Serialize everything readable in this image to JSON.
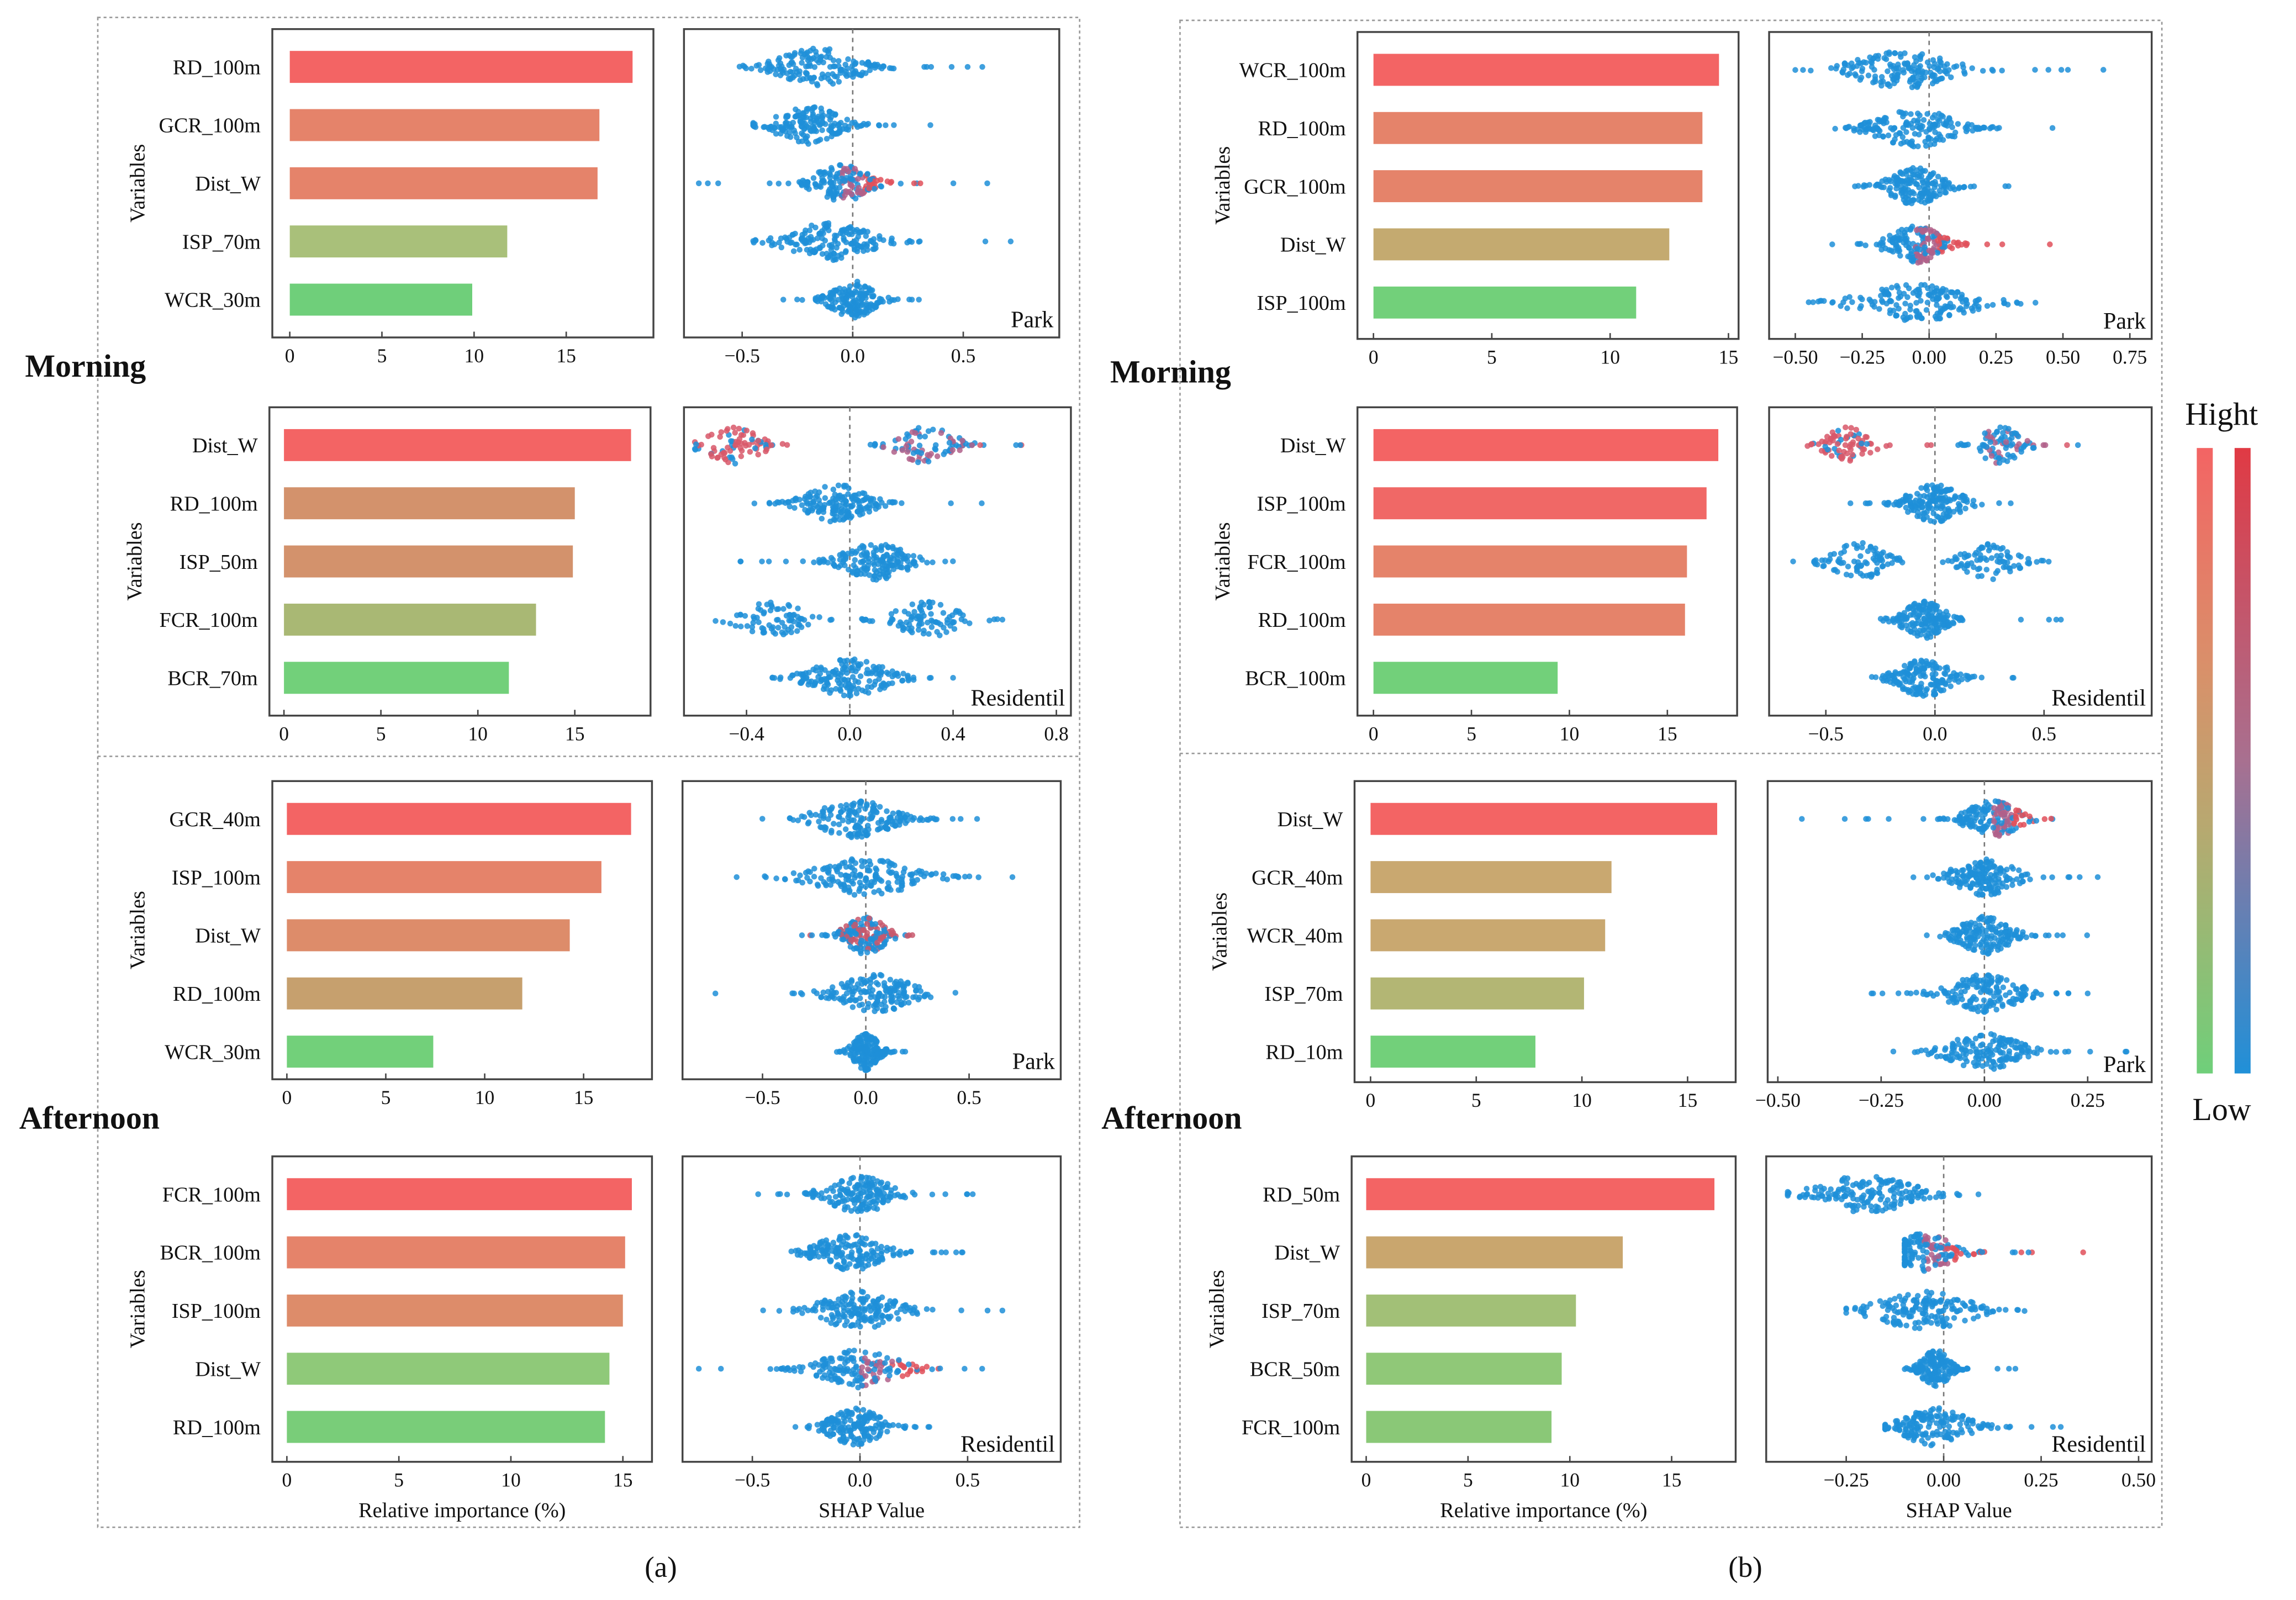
{
  "chart_data": {
    "type": "bar+beeswarm",
    "figure_labels": [
      "(a)",
      "(b)"
    ],
    "time_labels": {
      "morning": "Morning",
      "afternoon": "Afternoon"
    },
    "legend": {
      "high": "Hight",
      "low": "Low"
    },
    "ylabel": "Variables",
    "bar_xlabel": "Relative importance (%)",
    "shap_xlabel": "SHAP Value",
    "panels": [
      {
        "group": "a",
        "time": "Morning",
        "site": "Park",
        "bar_ticks": [
          "0",
          "5",
          "10",
          "15"
        ],
        "bar_tick_vals": [
          0,
          5,
          10,
          15
        ],
        "shap_ticks": [
          "−0.5",
          "0.0",
          "0.5"
        ],
        "shap_tick_vals": [
          -0.5,
          0,
          0.5
        ],
        "variables": [
          "RD_100m",
          "GCR_100m",
          "Dist_W",
          "ISP_70m",
          "WCR_30m"
        ],
        "importance": [
          18.6,
          16.8,
          16.7,
          11.8,
          9.9
        ],
        "colors": [
          "#f36464",
          "#e5836a",
          "#e5836a",
          "#a9c07a",
          "#6fcf7a"
        ],
        "shap": [
          {
            "c": -0.15,
            "sd": 0.15,
            "min": -0.7,
            "max": 0.7,
            "hi": "none"
          },
          {
            "c": -0.2,
            "sd": 0.12,
            "min": -0.45,
            "max": 0.45,
            "hi": "none"
          },
          {
            "c": -0.05,
            "sd": 0.1,
            "min": -0.7,
            "max": 0.65,
            "hi": "pos"
          },
          {
            "c": -0.1,
            "sd": 0.15,
            "min": -0.45,
            "max": 0.8,
            "hi": "none"
          },
          {
            "c": 0,
            "sd": 0.08,
            "min": -0.35,
            "max": 0.3,
            "hi": "none"
          }
        ]
      },
      {
        "group": "a",
        "time": "Morning",
        "site": "Residentil",
        "bar_ticks": [
          "0",
          "5",
          "10",
          "15"
        ],
        "bar_tick_vals": [
          0,
          5,
          10,
          15
        ],
        "shap_ticks": [
          "−0.4",
          "0.0",
          "0.4",
          "0.8"
        ],
        "shap_tick_vals": [
          -0.4,
          0,
          0.4,
          0.8
        ],
        "variables": [
          "Dist_W",
          "RD_100m",
          "ISP_50m",
          "FCR_100m",
          "BCR_70m"
        ],
        "importance": [
          17.9,
          15.0,
          14.9,
          13.0,
          11.6
        ],
        "colors": [
          "#f36464",
          "#d3926c",
          "#d3926c",
          "#a9b874",
          "#72d07a"
        ],
        "shap": [
          {
            "bi": [
              -0.45,
              0.3
            ],
            "sd": 0.09,
            "min": -0.6,
            "max": 0.7,
            "hi": "neg"
          },
          {
            "c": -0.05,
            "sd": 0.1,
            "min": -0.4,
            "max": 0.7,
            "hi": "none"
          },
          {
            "c": 0.1,
            "sd": 0.1,
            "min": -0.45,
            "max": 0.4,
            "hi": "none"
          },
          {
            "bi": [
              -0.3,
              0.3
            ],
            "sd": 0.1,
            "min": -0.6,
            "max": 0.65,
            "hi": "none"
          },
          {
            "c": 0,
            "sd": 0.12,
            "min": -0.3,
            "max": 0.4,
            "hi": "none"
          }
        ]
      },
      {
        "group": "a",
        "time": "Afternoon",
        "site": "Park",
        "bar_ticks": [
          "0",
          "5",
          "10",
          "15"
        ],
        "bar_tick_vals": [
          0,
          5,
          10,
          15
        ],
        "shap_ticks": [
          "−0.5",
          "0.0",
          "0.5"
        ],
        "shap_tick_vals": [
          -0.5,
          0,
          0.5
        ],
        "variables": [
          "GCR_40m",
          "ISP_100m",
          "Dist_W",
          "RD_100m",
          "WCR_30m"
        ],
        "importance": [
          17.4,
          15.9,
          14.3,
          11.9,
          7.4
        ],
        "colors": [
          "#f36464",
          "#e5836a",
          "#dd8c6a",
          "#c6a06e",
          "#72d07a"
        ],
        "shap": [
          {
            "c": -0.05,
            "sd": 0.15,
            "min": -0.6,
            "max": 0.8,
            "hi": "none"
          },
          {
            "c": 0,
            "sd": 0.2,
            "min": -0.65,
            "max": 0.8,
            "hi": "none"
          },
          {
            "c": 0,
            "sd": 0.08,
            "min": -0.35,
            "max": 0.25,
            "hi": "mixed"
          },
          {
            "c": 0.05,
            "sd": 0.15,
            "min": -0.75,
            "max": 0.45,
            "hi": "none"
          },
          {
            "c": 0,
            "sd": 0.05,
            "min": -0.2,
            "max": 0.2,
            "hi": "none"
          }
        ]
      },
      {
        "group": "a",
        "time": "Afternoon",
        "site": "Residentil",
        "bar_ticks": [
          "0",
          "5",
          "10",
          "15"
        ],
        "bar_tick_vals": [
          0,
          5,
          10,
          15
        ],
        "shap_ticks": [
          "−0.5",
          "0.0",
          "0.5"
        ],
        "shap_tick_vals": [
          -0.5,
          0,
          0.5
        ],
        "variables": [
          "FCR_100m",
          "BCR_100m",
          "ISP_100m",
          "Dist_W",
          "RD_100m"
        ],
        "importance": [
          15.4,
          15.1,
          15.0,
          14.4,
          14.2
        ],
        "colors": [
          "#f36464",
          "#e5836a",
          "#dd8c6a",
          "#8fc979",
          "#79cd79"
        ],
        "shap": [
          {
            "c": 0,
            "sd": 0.12,
            "min": -0.5,
            "max": 0.55,
            "hi": "none"
          },
          {
            "c": -0.05,
            "sd": 0.12,
            "min": -0.35,
            "max": 0.6,
            "hi": "none"
          },
          {
            "c": 0,
            "sd": 0.15,
            "min": -0.45,
            "max": 0.8,
            "hi": "none"
          },
          {
            "c": 0,
            "sd": 0.15,
            "min": -0.75,
            "max": 0.65,
            "hi": "pos"
          },
          {
            "c": -0.02,
            "sd": 0.1,
            "min": -0.3,
            "max": 0.35,
            "hi": "none"
          }
        ]
      },
      {
        "group": "b",
        "time": "Morning",
        "site": "Park",
        "bar_ticks": [
          "0",
          "5",
          "10",
          "15"
        ],
        "bar_tick_vals": [
          0,
          5,
          10,
          15
        ],
        "shap_ticks": [
          "−0.50",
          "−0.25",
          "0.00",
          "0.25",
          "0.50",
          "0.75"
        ],
        "shap_tick_vals": [
          -0.5,
          -0.25,
          0,
          0.25,
          0.5,
          0.75
        ],
        "variables": [
          "WCR_100m",
          "RD_100m",
          "GCR_100m",
          "Dist_W",
          "ISP_100m"
        ],
        "importance": [
          14.6,
          13.9,
          13.9,
          12.5,
          11.1
        ],
        "colors": [
          "#f36464",
          "#e5836a",
          "#e5836a",
          "#c4aa70",
          "#72d07a"
        ],
        "shap": [
          {
            "c": -0.1,
            "sd": 0.15,
            "min": -0.5,
            "max": 0.7,
            "hi": "none"
          },
          {
            "c": -0.05,
            "sd": 0.12,
            "min": -0.4,
            "max": 0.48,
            "hi": "none"
          },
          {
            "c": -0.05,
            "sd": 0.08,
            "min": -0.3,
            "max": 0.3,
            "hi": "none"
          },
          {
            "c": -0.05,
            "sd": 0.08,
            "min": -0.4,
            "max": 0.7,
            "hi": "pos"
          },
          {
            "c": -0.05,
            "sd": 0.17,
            "min": -0.45,
            "max": 0.45,
            "hi": "none"
          }
        ]
      },
      {
        "group": "b",
        "time": "Morning",
        "site": "Residentil",
        "bar_ticks": [
          "0",
          "5",
          "10",
          "15"
        ],
        "bar_tick_vals": [
          0,
          5,
          10,
          15
        ],
        "shap_ticks": [
          "−0.5",
          "0.0",
          "0.5"
        ],
        "shap_tick_vals": [
          -0.5,
          0,
          0.5
        ],
        "variables": [
          "Dist_W",
          "ISP_100m",
          "FCR_100m",
          "RD_100m",
          "BCR_100m"
        ],
        "importance": [
          17.6,
          17.0,
          16.0,
          15.9,
          9.4
        ],
        "colors": [
          "#f36464",
          "#f06866",
          "#e5836a",
          "#e5836a",
          "#72d07a"
        ],
        "shap": [
          {
            "bi": [
              -0.4,
              0.3
            ],
            "sd": 0.08,
            "min": -0.6,
            "max": 0.67,
            "hi": "neg"
          },
          {
            "c": 0,
            "sd": 0.1,
            "min": -0.4,
            "max": 0.4,
            "hi": "none"
          },
          {
            "bi": [
              -0.35,
              0.25
            ],
            "sd": 0.1,
            "min": -0.65,
            "max": 0.8,
            "hi": "none"
          },
          {
            "c": -0.05,
            "sd": 0.08,
            "min": -0.35,
            "max": 0.6,
            "hi": "none"
          },
          {
            "c": -0.05,
            "sd": 0.1,
            "min": -0.3,
            "max": 0.4,
            "hi": "none"
          }
        ]
      },
      {
        "group": "b",
        "time": "Afternoon",
        "site": "Park",
        "bar_ticks": [
          "0",
          "5",
          "10",
          "15"
        ],
        "bar_tick_vals": [
          0,
          5,
          10,
          15
        ],
        "shap_ticks": [
          "−0.50",
          "−0.25",
          "0.00",
          "0.25"
        ],
        "shap_tick_vals": [
          -0.5,
          -0.25,
          0,
          0.25
        ],
        "variables": [
          "Dist_W",
          "GCR_40m",
          "WCR_40m",
          "ISP_70m",
          "RD_10m"
        ],
        "importance": [
          16.4,
          11.4,
          11.1,
          10.1,
          7.8
        ],
        "colors": [
          "#f36464",
          "#c9a870",
          "#c9a870",
          "#b3b674",
          "#72d07a"
        ],
        "shap": [
          {
            "c": 0.02,
            "sd": 0.05,
            "min": -0.48,
            "max": 0.2,
            "hi": "pos"
          },
          {
            "c": 0,
            "sd": 0.06,
            "min": -0.2,
            "max": 0.3,
            "hi": "none"
          },
          {
            "c": 0,
            "sd": 0.05,
            "min": -0.15,
            "max": 0.3,
            "hi": "none"
          },
          {
            "c": 0,
            "sd": 0.07,
            "min": -0.28,
            "max": 0.25,
            "hi": "none"
          },
          {
            "c": 0,
            "sd": 0.07,
            "min": -0.3,
            "max": 0.35,
            "hi": "none"
          }
        ]
      },
      {
        "group": "b",
        "time": "Afternoon",
        "site": "Residentil",
        "bar_ticks": [
          "0",
          "5",
          "10",
          "15"
        ],
        "bar_tick_vals": [
          0,
          5,
          10,
          15
        ],
        "shap_ticks": [
          "−0.25",
          "0.00",
          "0.25",
          "0.50"
        ],
        "shap_tick_vals": [
          -0.25,
          0,
          0.25,
          0.5
        ],
        "variables": [
          "RD_50m",
          "Dist_W",
          "ISP_70m",
          "BCR_50m",
          "FCR_100m"
        ],
        "importance": [
          17.1,
          12.6,
          10.3,
          9.6,
          9.1
        ],
        "colors": [
          "#f36464",
          "#c9a66e",
          "#a2c077",
          "#90c878",
          "#8ac877"
        ],
        "shap": [
          {
            "c": -0.2,
            "sd": 0.1,
            "min": -0.4,
            "max": 0.1,
            "hi": "none"
          },
          {
            "c": -0.05,
            "sd": 0.06,
            "min": -0.1,
            "max": 0.38,
            "hi": "pos"
          },
          {
            "c": -0.05,
            "sd": 0.1,
            "min": -0.25,
            "max": 0.45,
            "hi": "none"
          },
          {
            "c": -0.02,
            "sd": 0.03,
            "min": -0.1,
            "max": 0.2,
            "hi": "none"
          },
          {
            "c": -0.02,
            "sd": 0.07,
            "min": -0.15,
            "max": 0.32,
            "hi": "none"
          }
        ]
      }
    ]
  }
}
